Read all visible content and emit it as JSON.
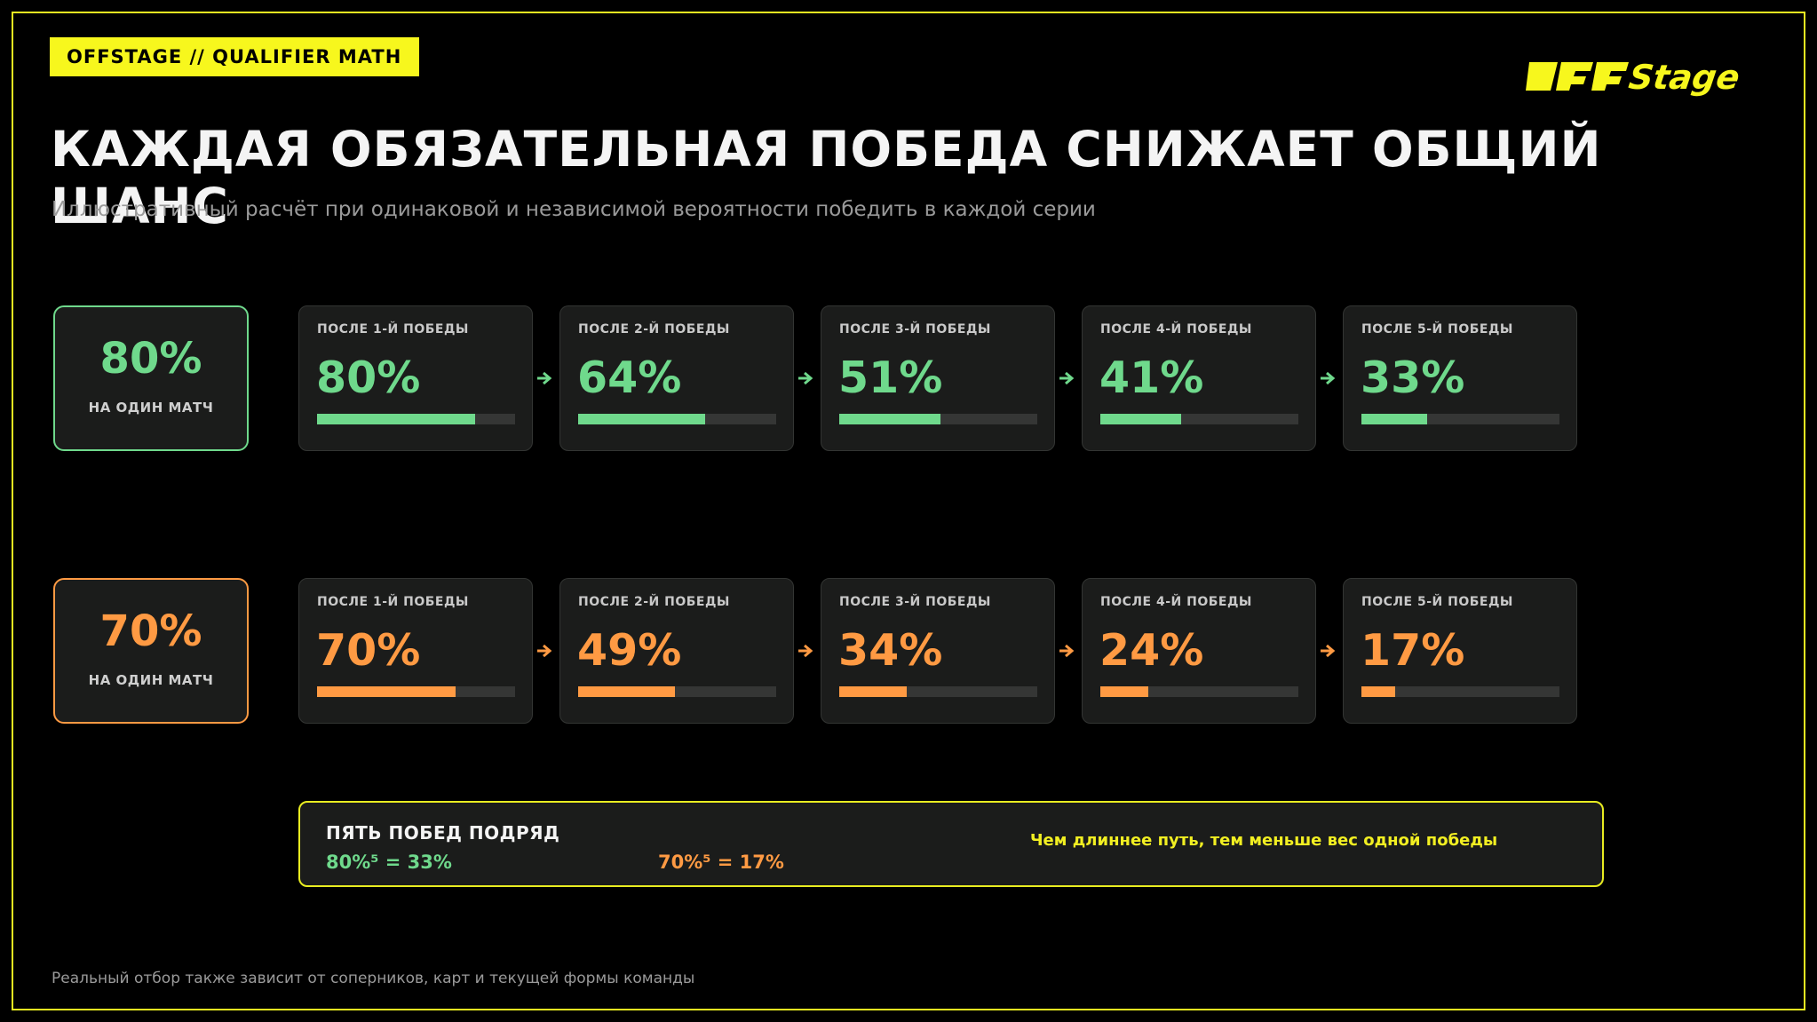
{
  "brand_tag": "OFFSTAGE  //  QUALIFIER MATH",
  "title": "КАЖДАЯ ОБЯЗАТЕЛЬНАЯ ПОБЕДА СНИЖАЕТ ОБЩИЙ ШАНС",
  "subtitle": "Иллюстративный расчёт при одинаковой и независимой вероятности победить в каждой серии",
  "colors": {
    "accent": "#f7f71d",
    "green": "#6fd98c",
    "orange": "#ff9a43",
    "card": "#1b1c1b"
  },
  "rows": [
    {
      "per_match": "80%",
      "per_match_caption": "НА ОДИН МАТЧ",
      "steps": [
        {
          "label": "ПОСЛЕ 1-Й ПОБЕДЫ",
          "value": "80%",
          "level": 0.8
        },
        {
          "label": "ПОСЛЕ 2-Й ПОБЕДЫ",
          "value": "64%",
          "level": 0.64
        },
        {
          "label": "ПОСЛЕ 3-Й ПОБЕДЫ",
          "value": "51%",
          "level": 0.51
        },
        {
          "label": "ПОСЛЕ 4-Й ПОБЕДЫ",
          "value": "41%",
          "level": 0.41
        },
        {
          "label": "ПОСЛЕ 5-Й ПОБЕДЫ",
          "value": "33%",
          "level": 0.33
        }
      ]
    },
    {
      "per_match": "70%",
      "per_match_caption": "НА ОДИН МАТЧ",
      "steps": [
        {
          "label": "ПОСЛЕ 1-Й ПОБЕДЫ",
          "value": "70%",
          "level": 0.7
        },
        {
          "label": "ПОСЛЕ 2-Й ПОБЕДЫ",
          "value": "49%",
          "level": 0.49
        },
        {
          "label": "ПОСЛЕ 3-Й ПОБЕДЫ",
          "value": "34%",
          "level": 0.34
        },
        {
          "label": "ПОСЛЕ 4-Й ПОБЕДЫ",
          "value": "24%",
          "level": 0.24
        },
        {
          "label": "ПОСЛЕ 5-Й ПОБЕДЫ",
          "value": "17%",
          "level": 0.17
        }
      ]
    }
  ],
  "summary": {
    "heading": "ПЯТЬ ПОБЕД ПОДРЯД",
    "formula_green": "80%⁵ = 33%",
    "formula_orange": "70%⁵ = 17%",
    "note": "Чем длиннее путь, тем меньше вес одной победы"
  },
  "footnote": "Реальный отбор также зависит от соперников, карт и текущей формы команды"
}
